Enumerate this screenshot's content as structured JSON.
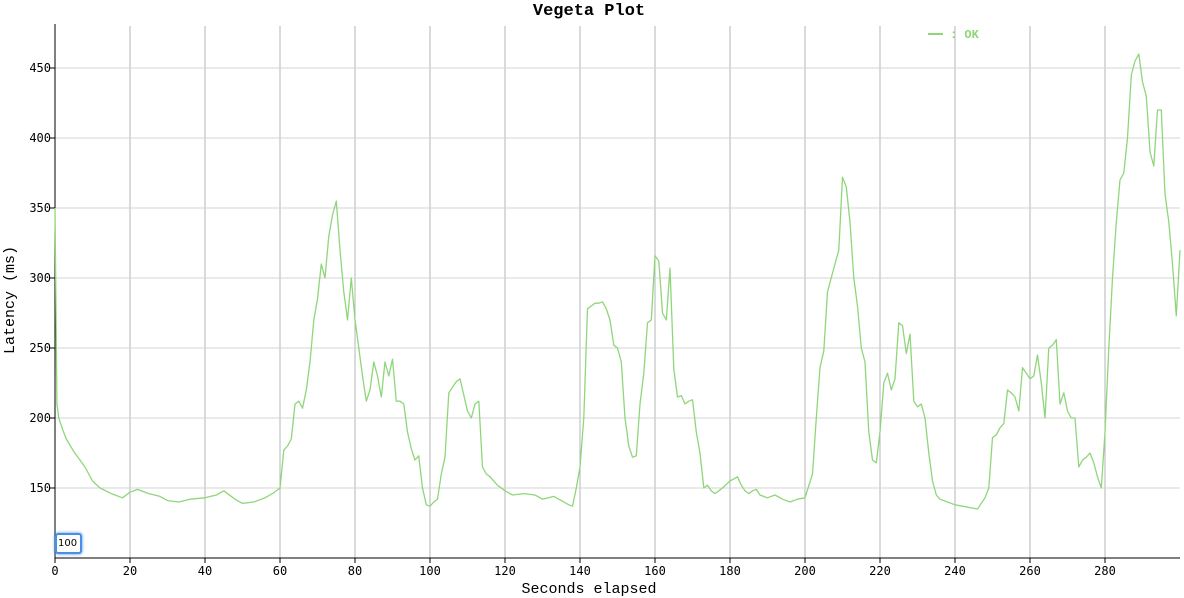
{
  "chart_data": {
    "type": "line",
    "title": "Vegeta Plot",
    "xlabel": "Seconds elapsed",
    "ylabel": "Latency (ms)",
    "xlim": [
      0,
      300
    ],
    "ylim": [
      100,
      480
    ],
    "x_ticks": [
      "0",
      "20",
      "40",
      "60",
      "80",
      "100",
      "120",
      "140",
      "160",
      "180",
      "200",
      "220",
      "240",
      "260",
      "280"
    ],
    "y_ticks": [
      "150",
      "200",
      "250",
      "300",
      "350",
      "400",
      "450"
    ],
    "grid": true,
    "legend": "top-right",
    "series": [
      {
        "name": "OK",
        "color": "#8fd67a",
        "x": [
          0,
          0.5,
          1,
          2,
          3,
          5,
          8,
          10,
          12,
          15,
          18,
          20,
          22,
          25,
          28,
          30,
          33,
          36,
          40,
          43,
          45,
          48,
          50,
          53,
          56,
          58,
          60,
          61,
          62,
          63,
          64,
          65,
          66,
          67,
          68,
          69,
          70,
          71,
          72,
          73,
          74,
          75,
          76,
          77,
          78,
          79,
          80,
          81,
          82,
          83,
          84,
          85,
          86,
          87,
          88,
          89,
          90,
          91,
          92,
          93,
          94,
          95,
          96,
          97,
          98,
          99,
          100,
          101,
          102,
          103,
          104,
          105,
          106,
          107,
          108,
          110,
          111,
          112,
          113,
          114,
          115,
          116,
          118,
          120,
          122,
          125,
          128,
          130,
          133,
          135,
          137,
          138,
          139,
          140,
          141,
          142,
          143,
          144,
          145,
          146,
          147,
          148,
          149,
          150,
          151,
          152,
          153,
          154,
          155,
          156,
          157,
          158,
          159,
          160,
          161,
          162,
          163,
          164,
          165,
          166,
          167,
          168,
          169,
          170,
          171,
          172,
          173,
          174,
          175,
          176,
          177,
          178,
          180,
          182,
          183,
          184,
          185,
          186,
          187,
          188,
          190,
          192,
          194,
          196,
          198,
          200,
          202,
          203,
          204,
          205,
          206,
          207,
          208,
          209,
          210,
          211,
          212,
          213,
          214,
          215,
          216,
          217,
          218,
          219,
          220,
          221,
          222,
          223,
          224,
          225,
          226,
          227,
          228,
          229,
          230,
          231,
          232,
          233,
          234,
          235,
          236,
          238,
          240,
          242,
          244,
          246,
          248,
          249,
          250,
          251,
          252,
          253,
          254,
          255,
          256,
          257,
          258,
          259,
          260,
          261,
          262,
          263,
          264,
          265,
          266,
          267,
          268,
          269,
          270,
          271,
          272,
          273,
          274,
          275,
          276,
          277,
          278,
          279,
          280,
          281,
          282,
          283,
          284,
          285,
          286,
          287,
          288,
          289,
          290,
          291,
          292,
          293,
          294,
          295,
          296,
          297,
          298,
          299,
          300
        ],
        "y": [
          350,
          210,
          200,
          192,
          185,
          176,
          165,
          155,
          150,
          146,
          143,
          147,
          149,
          146,
          144,
          141,
          140,
          142,
          143,
          145,
          148,
          142,
          139,
          140,
          143,
          146,
          150,
          177,
          180,
          185,
          210,
          212,
          207,
          220,
          240,
          270,
          285,
          310,
          300,
          330,
          345,
          355,
          320,
          290,
          270,
          300,
          270,
          250,
          230,
          212,
          220,
          240,
          230,
          215,
          240,
          230,
          242,
          212,
          212,
          210,
          190,
          178,
          170,
          173,
          150,
          138,
          137,
          140,
          142,
          160,
          172,
          218,
          222,
          226,
          228,
          205,
          200,
          210,
          212,
          165,
          160,
          158,
          152,
          148,
          145,
          146,
          145,
          142,
          144,
          141,
          138,
          137,
          150,
          165,
          200,
          278,
          280,
          282,
          282,
          283,
          278,
          270,
          252,
          250,
          240,
          200,
          180,
          172,
          173,
          210,
          232,
          268,
          270,
          316,
          312,
          275,
          270,
          307,
          235,
          215,
          216,
          210,
          212,
          213,
          190,
          175,
          150,
          152,
          148,
          146,
          148,
          150,
          155,
          158,
          152,
          148,
          146,
          148,
          149,
          145,
          143,
          145,
          142,
          140,
          142,
          143,
          160,
          200,
          236,
          248,
          290,
          300,
          310,
          320,
          372,
          365,
          340,
          300,
          280,
          250,
          240,
          190,
          170,
          168,
          190,
          225,
          232,
          220,
          228,
          268,
          266,
          246,
          260,
          212,
          208,
          210,
          200,
          175,
          155,
          145,
          142,
          140,
          138,
          137,
          136,
          135,
          143,
          150,
          186,
          188,
          193,
          196,
          220,
          218,
          215,
          205,
          236,
          232,
          228,
          230,
          245,
          225,
          200,
          250,
          252,
          256,
          210,
          218,
          205,
          200,
          200,
          165,
          170,
          172,
          175,
          168,
          158,
          150,
          190,
          250,
          300,
          340,
          370,
          375,
          400,
          445,
          455,
          460,
          440,
          430,
          390,
          380,
          420,
          420,
          360,
          340,
          310,
          273,
          320
        ]
      }
    ]
  },
  "overlay_input": {
    "value": "100"
  }
}
